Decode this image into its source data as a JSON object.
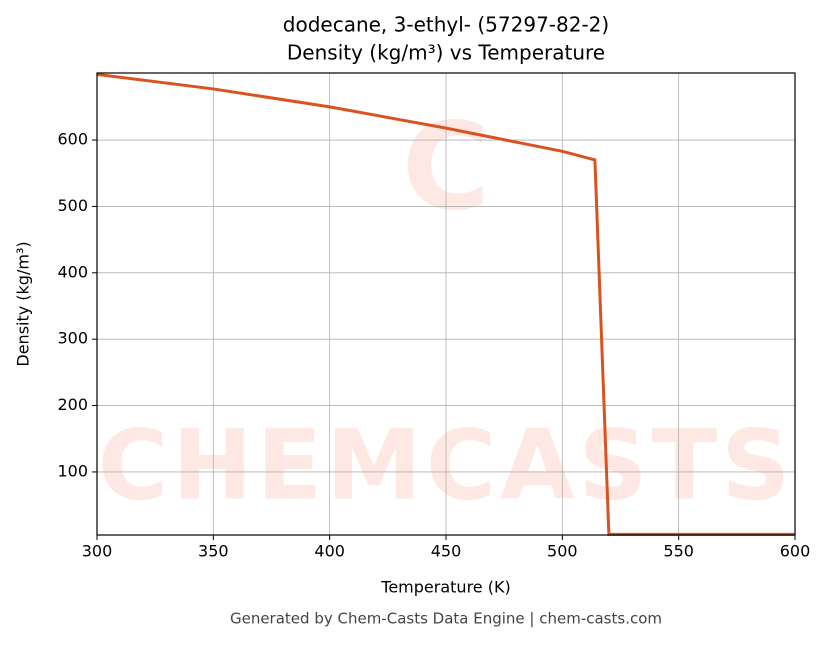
{
  "chart_data": {
    "type": "line",
    "title": "dodecane, 3-ethyl- (57297-82-2)",
    "subtitle": "Density (kg/m³) vs Temperature",
    "x_label": "Temperature (K)",
    "y_label": "Density (kg/m³)",
    "footer": "Generated by Chem-Casts Data Engine | chem-casts.com",
    "watermark": "CHEMCASTS",
    "x": [
      300,
      350,
      400,
      450,
      500,
      514,
      520,
      600
    ],
    "series": [
      {
        "name": "Density",
        "color": "#d95321",
        "values": [
          699,
          677,
          650,
          618,
          583,
          570,
          6,
          6
        ]
      }
    ],
    "xlim": [
      300,
      600
    ],
    "ylim": [
      5,
      701
    ],
    "xticks": [
      300,
      350,
      400,
      450,
      500,
      550,
      600
    ],
    "yticks": [
      100,
      200,
      300,
      400,
      500,
      600
    ],
    "grid": true
  }
}
